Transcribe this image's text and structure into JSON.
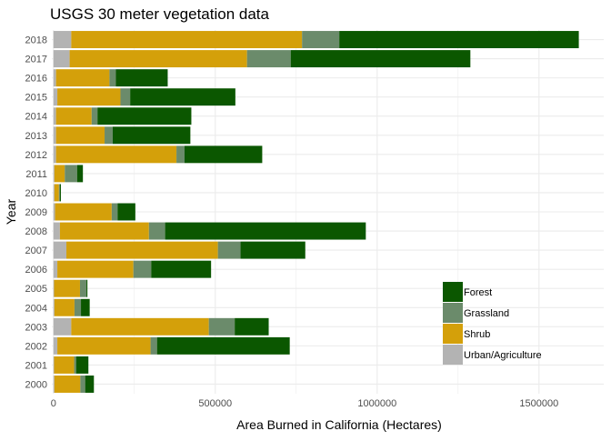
{
  "chart_data": {
    "type": "bar",
    "orientation": "horizontal",
    "stacked": true,
    "title": "USGS 30 meter vegetation data",
    "xlabel": "Area Burned in California (Hectares)",
    "ylabel": "Year",
    "xlim": [
      -5000,
      1700000
    ],
    "xticks": [
      0,
      500000,
      1000000,
      1500000
    ],
    "xtick_labels": [
      "0",
      "500000",
      "1000000",
      "1500000"
    ],
    "grid": true,
    "legend_position": "lower-right",
    "categories": [
      "2000",
      "2001",
      "2002",
      "2003",
      "2004",
      "2005",
      "2006",
      "2007",
      "2008",
      "2009",
      "2010",
      "2011",
      "2012",
      "2013",
      "2014",
      "2015",
      "2016",
      "2017",
      "2018"
    ],
    "series": [
      {
        "name": "Urban/Agriculture",
        "color": "#b3b3b3",
        "values": [
          3000,
          2000,
          12000,
          55000,
          3000,
          2000,
          12000,
          40000,
          20000,
          5000,
          3000,
          3000,
          8000,
          8000,
          8000,
          12000,
          8000,
          50000,
          55000
        ]
      },
      {
        "name": "Shrub",
        "color": "#d4a00a",
        "values": [
          80000,
          62000,
          288000,
          425000,
          62000,
          80000,
          235000,
          468000,
          275000,
          175000,
          14000,
          32000,
          372000,
          150000,
          110000,
          195000,
          165000,
          548000,
          713000
        ]
      },
      {
        "name": "Grassland",
        "color": "#6b8b6b",
        "values": [
          15000,
          6000,
          20000,
          80000,
          20000,
          20000,
          55000,
          70000,
          50000,
          18000,
          3000,
          38000,
          25000,
          25000,
          18000,
          30000,
          20000,
          135000,
          115000
        ]
      },
      {
        "name": "Forest",
        "color": "#0b5700",
        "values": [
          27000,
          38000,
          410000,
          105000,
          27000,
          3000,
          185000,
          200000,
          620000,
          55000,
          3000,
          18000,
          240000,
          240000,
          290000,
          325000,
          160000,
          555000,
          740000
        ]
      }
    ],
    "legend_order": [
      "Forest",
      "Grassland",
      "Shrub",
      "Urban/Agriculture"
    ]
  }
}
